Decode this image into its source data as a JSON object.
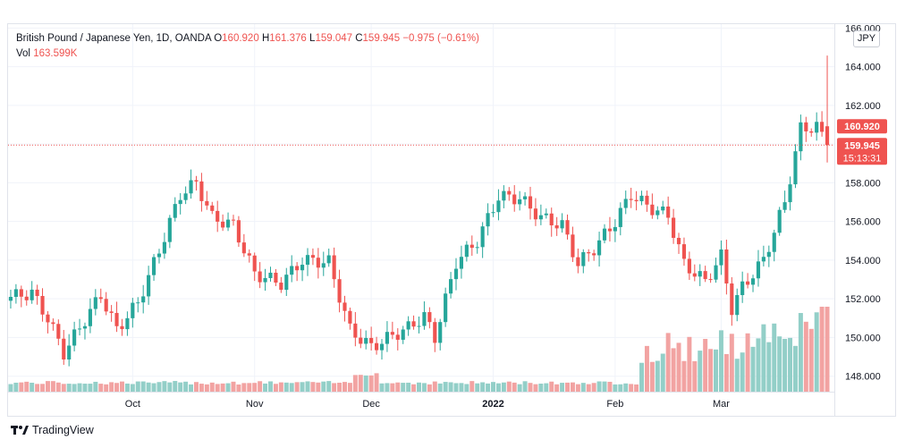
{
  "legend": {
    "symbol": "British Pound / Japanese Yen, 1D, OANDA",
    "open_label": "O",
    "open": "160.920",
    "high_label": "H",
    "high": "161.376",
    "low_label": "L",
    "low": "159.047",
    "close_label": "C",
    "close": "159.945",
    "change": "−0.975 (−0.61%)",
    "vol_label": "Vol",
    "vol": "163.599K"
  },
  "currency_badge": "JPY",
  "price_tags": {
    "prev": "160.920",
    "last": "159.945",
    "countdown": "15:13:31"
  },
  "footer": {
    "brand": "TradingView",
    "logo": "tradingview-logo"
  },
  "colors": {
    "up": "#26a69a",
    "down": "#ef5350",
    "vol_up": "#93cfc8",
    "vol_down": "#f2a3a2",
    "grid": "#f0f3fa"
  },
  "chart_data": {
    "type": "candlestick",
    "symbol": "GBPJPY",
    "interval": "1D",
    "ylim": [
      147.2,
      166.2
    ],
    "yticks": [
      "148.000",
      "150.000",
      "152.000",
      "154.000",
      "156.000",
      "158.000",
      "160.000",
      "162.000",
      "164.000",
      "166.000"
    ],
    "xticks": [
      {
        "label": "Oct",
        "index": 23
      },
      {
        "label": "Nov",
        "index": 46
      },
      {
        "label": "Dec",
        "index": 68
      },
      {
        "label": "2022",
        "index": 91
      },
      {
        "label": "Feb",
        "index": 114
      },
      {
        "label": "Mar",
        "index": 134
      }
    ],
    "anchor_points": [
      [
        0,
        152.1
      ],
      [
        4,
        152.3
      ],
      [
        7,
        151.0
      ],
      [
        10,
        149.2
      ],
      [
        13,
        150.5
      ],
      [
        17,
        152.2
      ],
      [
        20,
        150.4
      ],
      [
        24,
        151.8
      ],
      [
        28,
        154.5
      ],
      [
        32,
        157.4
      ],
      [
        35,
        158.0
      ],
      [
        38,
        156.2
      ],
      [
        42,
        155.8
      ],
      [
        46,
        153.3
      ],
      [
        51,
        152.8
      ],
      [
        55,
        154.0
      ],
      [
        60,
        153.9
      ],
      [
        64,
        150.4
      ],
      [
        68,
        149.5
      ],
      [
        72,
        150.1
      ],
      [
        75,
        150.5
      ],
      [
        78,
        151.1
      ],
      [
        80,
        150.0
      ],
      [
        84,
        153.9
      ],
      [
        88,
        155.0
      ],
      [
        92,
        157.3
      ],
      [
        96,
        157.2
      ],
      [
        100,
        156.2
      ],
      [
        104,
        155.8
      ],
      [
        107,
        153.8
      ],
      [
        110,
        154.6
      ],
      [
        114,
        156.0
      ],
      [
        117,
        157.4
      ],
      [
        120,
        156.8
      ],
      [
        124,
        156.3
      ],
      [
        127,
        153.8
      ],
      [
        131,
        152.9
      ],
      [
        134,
        154.2
      ],
      [
        136,
        151.5
      ],
      [
        138,
        152.6
      ],
      [
        142,
        154.0
      ],
      [
        146,
        157.0
      ],
      [
        149,
        160.8
      ],
      [
        152,
        160.9
      ],
      [
        154,
        159.945
      ]
    ],
    "last_candle": {
      "open": 160.92,
      "high": 161.376,
      "low": 159.047,
      "close": 159.945
    },
    "volume_last": "163.599K"
  }
}
